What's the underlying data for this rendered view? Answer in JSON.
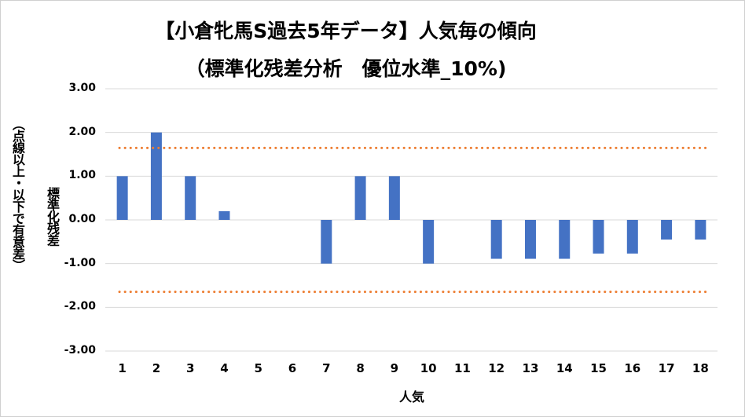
{
  "chart_data": {
    "type": "bar",
    "title_line1": "【小倉牝馬S過去5年データ】人気毎の傾向",
    "title_line2": "（標準化残差分析　優位水準_10%)",
    "xlabel": "人気",
    "ylabel": "標準化残差",
    "ylabel_note": "（点線以上・以下で有意差）",
    "categories": [
      "1",
      "2",
      "3",
      "4",
      "5",
      "6",
      "7",
      "8",
      "9",
      "10",
      "11",
      "12",
      "13",
      "14",
      "15",
      "16",
      "17",
      "18"
    ],
    "values": [
      1.0,
      2.0,
      1.0,
      0.2,
      0,
      0,
      -1.0,
      1.0,
      1.0,
      -1.0,
      0,
      -0.89,
      -0.89,
      -0.89,
      -0.77,
      -0.77,
      -0.45,
      -0.45
    ],
    "y_ticks": [
      "3.00",
      "2.00",
      "1.00",
      "0.00",
      "-1.00",
      "-2.00",
      "-3.00"
    ],
    "ylim": [
      -3,
      3
    ],
    "reference_lines": [
      1.645,
      -1.645
    ],
    "bar_color": "#4472c4",
    "reference_color": "#ed7d31",
    "grid": true
  }
}
